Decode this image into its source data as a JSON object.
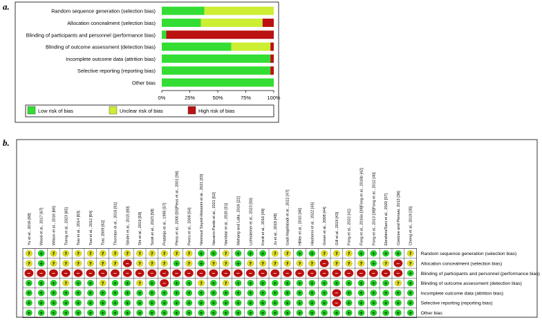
{
  "panel_a_label": "a.",
  "panel_b_label": "b.",
  "colors": {
    "low": "#33dd33",
    "unclear": "#ccee33",
    "high": "#bb1111",
    "symbol_low": "#22cc22",
    "symbol_unclear": "#dddd22",
    "symbol_high": "#bb1111"
  },
  "chart_data": [
    {
      "type": "bar",
      "subtype": "stacked-horizontal-percent",
      "title": "",
      "categories": [
        "Random sequence generation (selection bias)",
        "Allocation concealment (selection bias)",
        "Blinding of participants and personnel (performance bias)",
        "Blinding of outcome assessment (detection bias)",
        "Incomplete outcome data (attrition bias)",
        "Selective reporting (reporting bias)",
        "Other bias"
      ],
      "series": [
        {
          "name": "Low risk of bias",
          "values": [
            38,
            35,
            4,
            62,
            97,
            97,
            100
          ]
        },
        {
          "name": "Unclear risk of bias",
          "values": [
            62,
            55,
            0,
            35,
            0,
            0,
            0
          ]
        },
        {
          "name": "High risk of bias",
          "values": [
            0,
            10,
            96,
            3,
            3,
            3,
            0
          ]
        }
      ],
      "xticks": [
        "0%",
        "25%",
        "50%",
        "75%",
        "100%"
      ],
      "xlim": [
        0,
        100
      ],
      "legend": [
        "Low risk of bias",
        "Unclear risk of bias",
        "High risk of bias"
      ],
      "legend_position": "bottom"
    },
    {
      "type": "table",
      "subtype": "risk-of-bias-summary",
      "symbols": {
        "low": "+",
        "unclear": "?",
        "high": "−"
      },
      "studies": [
        "Yu et al., 2016 [68]",
        "Wood et al., 2017 [67]",
        "Wilson et al., 2016 [66]",
        "Tseng et al., 2023 [65]",
        "Tsai et al., 2014 [63]",
        "Tsai et al., 2012 [64]",
        "Tsai, 2009 [62]",
        "Thornton et al., 2016 [61]",
        "Strider et al., 2015 [60]",
        "Shi et al., 2019 [59]",
        "Scott et al., 2023 [58]",
        "Pratskijo et al., 1995 [57]",
        "Pless et al., 2000 [55]Pless et al., 2001 [56]",
        "Peers et al., 2008 [54]",
        "Noorouzi Seyed-Hosseini et al., 2021 [53]",
        "Navarro-Pardo et al., 2021 [52]",
        "Nambiar et al., 2020 [51]",
        "Mahang and Lalla, 2016 [22]",
        "Lichtsteiner et al., 2023 [50]",
        "Kordi et al., 2016 [49]",
        "Ju et al., 2018 [48]",
        "Izadi-Najafabadi et al., 2022 [47]",
        "Hillier et al., 2010 [46]",
        "Hashemi et al., 2022 [45]",
        "Green et al., 2008 [44]",
        "Gill et al., 2019 [43]",
        "Fong et al., 2022 [41]",
        "Fong et al., 2016a [39]Fong et al., 2016b [42]",
        "Fong et al., 2013 [38]Fong et al., 2012 [40]",
        "Ebrahimi/Sani et al., 2020 [37]",
        "Coetzee and Pienaar, 2013 [36]",
        "Cheng et al., 2019 [35]"
      ],
      "domains": [
        "Random sequence generation (selection bias)",
        "Allocation concealment (selection bias)",
        "Blinding of participants and personnel (performance bias)",
        "Blinding of outcome assessment (detection bias)",
        "Incomplete outcome data (attrition bias)",
        "Selective reporting (reporting bias)",
        "Other bias"
      ],
      "ratings": [
        [
          "U",
          "L",
          "U",
          "U",
          "U",
          "U",
          "U",
          "U",
          "U",
          "U",
          "U",
          "U",
          "U",
          "U",
          "L",
          "L",
          "U",
          "L",
          "L",
          "L",
          "U",
          "U",
          "L",
          "L",
          "U",
          "U",
          "U",
          "L",
          "L",
          "L",
          "L",
          "U"
        ],
        [
          "U",
          "L",
          "U",
          "U",
          "U",
          "U",
          "U",
          "U",
          "H",
          "U",
          "U",
          "U",
          "L",
          "U",
          "L",
          "U",
          "U",
          "L",
          "U",
          "U",
          "U",
          "U",
          "U",
          "U",
          "H",
          "U",
          "U",
          "U",
          "L",
          "U",
          "H",
          "U"
        ],
        [
          "H",
          "H",
          "H",
          "H",
          "H",
          "H",
          "H",
          "H",
          "H",
          "H",
          "H",
          "H",
          "H",
          "H",
          "H",
          "H",
          "H",
          "H",
          "H",
          "H",
          "H",
          "H",
          "H",
          "H",
          "H",
          "H",
          "H",
          "H",
          "H",
          "H",
          "H",
          "L"
        ],
        [
          "L",
          "L",
          "L",
          "U",
          "L",
          "L",
          "U",
          "L",
          "L",
          "U",
          "L",
          "H",
          "L",
          "L",
          "U",
          "L",
          "U",
          "L",
          "L",
          "L",
          "L",
          "L",
          "L",
          "L",
          "L",
          "L",
          "L",
          "L",
          "L",
          "L",
          "U",
          "L"
        ],
        [
          "L",
          "L",
          "L",
          "L",
          "L",
          "L",
          "L",
          "L",
          "L",
          "L",
          "L",
          "L",
          "L",
          "L",
          "L",
          "L",
          "L",
          "L",
          "L",
          "L",
          "L",
          "L",
          "L",
          "L",
          "L",
          "H",
          "L",
          "L",
          "L",
          "L",
          "L",
          "L"
        ],
        [
          "L",
          "L",
          "L",
          "L",
          "L",
          "L",
          "L",
          "L",
          "L",
          "L",
          "L",
          "L",
          "L",
          "L",
          "L",
          "L",
          "L",
          "L",
          "L",
          "L",
          "L",
          "L",
          "L",
          "L",
          "L",
          "H",
          "L",
          "L",
          "L",
          "L",
          "L",
          "L"
        ],
        [
          "L",
          "L",
          "L",
          "L",
          "L",
          "L",
          "L",
          "L",
          "L",
          "L",
          "L",
          "L",
          "L",
          "L",
          "L",
          "L",
          "L",
          "L",
          "L",
          "L",
          "L",
          "L",
          "L",
          "L",
          "L",
          "L",
          "L",
          "L",
          "L",
          "L",
          "L",
          "L"
        ]
      ]
    }
  ]
}
